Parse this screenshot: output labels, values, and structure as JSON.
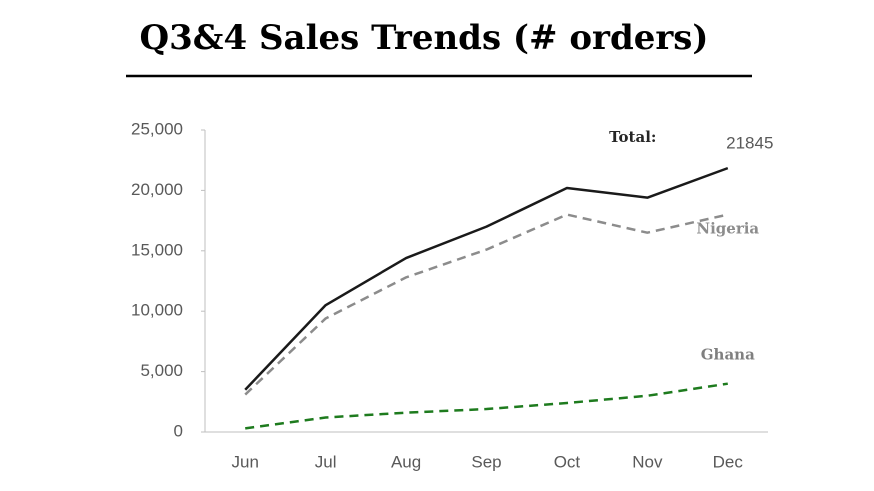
{
  "chart_data": {
    "type": "line",
    "title": "Q3&4 Sales Trends (# orders)",
    "categories": [
      "Jun",
      "Jul",
      "Aug",
      "Sep",
      "Oct",
      "Nov",
      "Dec"
    ],
    "series": [
      {
        "name": "Total:",
        "color": "#1a1a1a",
        "values": [
          3500,
          10500,
          14400,
          17000,
          20200,
          19400,
          21845
        ]
      },
      {
        "name": "Nigeria",
        "color": "#8c8c8c",
        "values": [
          3100,
          9400,
          12800,
          15100,
          18000,
          16500,
          18000
        ]
      },
      {
        "name": "Ghana",
        "color": "#1e7b1e",
        "values": [
          300,
          1200,
          1600,
          1900,
          2400,
          3000,
          4000
        ]
      }
    ],
    "ylim": [
      0,
      25000
    ],
    "yticks": [
      0,
      {
        "value": 5000,
        "label": "5,000"
      },
      {
        "value": 10000,
        "label": "10,000"
      },
      {
        "value": 15000,
        "label": "15,000"
      },
      {
        "value": 20000,
        "label": "20,000"
      },
      {
        "value": 25000,
        "label": "25,000"
      }
    ],
    "grid": false
  }
}
